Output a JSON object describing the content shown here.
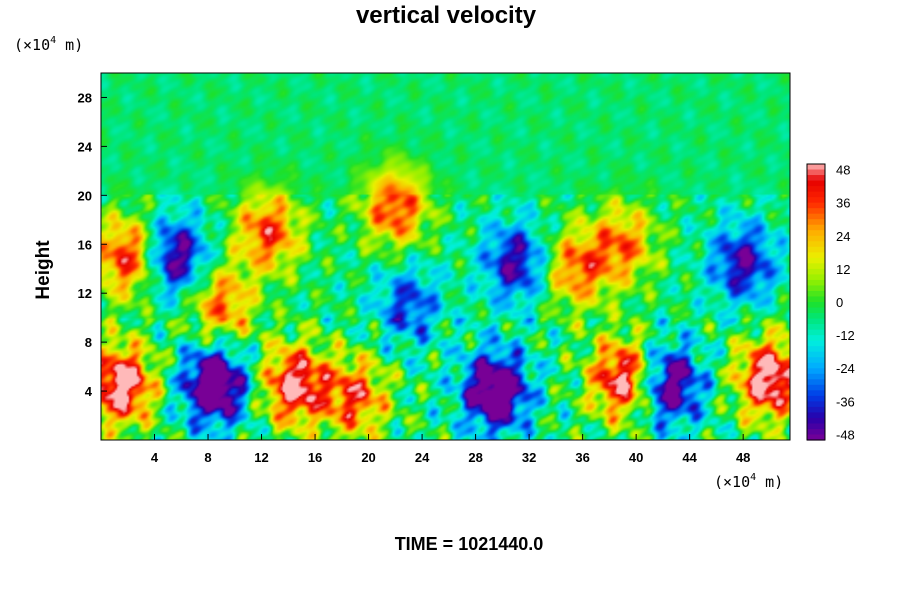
{
  "chart_data": {
    "type": "heatmap",
    "title": "vertical velocity",
    "ylabel": "Height",
    "x_unit": {
      "base": "(×10",
      "exp": "4",
      "rest": " m)"
    },
    "y_unit": {
      "base": "(×10",
      "exp": "4",
      "rest": " m)"
    },
    "xlim": [
      0,
      51.5
    ],
    "ylim": [
      0,
      30
    ],
    "x_ticks": [
      "4",
      "8",
      "12",
      "16",
      "20",
      "24",
      "28",
      "32",
      "36",
      "40",
      "44",
      "48"
    ],
    "y_ticks": [
      "4",
      "8",
      "12",
      "16",
      "20",
      "24",
      "28"
    ],
    "x_tick_values": [
      4,
      8,
      12,
      16,
      20,
      24,
      28,
      32,
      36,
      40,
      44,
      48
    ],
    "y_tick_values": [
      4,
      8,
      12,
      16,
      20,
      24,
      28
    ],
    "colorbar": {
      "min": -50,
      "max": 50,
      "tick_labels": [
        "48",
        "36",
        "24",
        "12",
        "0",
        "-12",
        "-24",
        "-36",
        "-48"
      ],
      "tick_values": [
        48,
        36,
        24,
        12,
        0,
        -12,
        -24,
        -36,
        -48
      ]
    },
    "features": [
      {
        "x": 1.5,
        "y": 4.5,
        "v": 50
      },
      {
        "x": 8.5,
        "y": 4.5,
        "v": -50
      },
      {
        "x": 14.5,
        "y": 4.5,
        "v": 46
      },
      {
        "x": 19,
        "y": 3.5,
        "v": 34
      },
      {
        "x": 29.5,
        "y": 4,
        "v": -50
      },
      {
        "x": 39,
        "y": 5,
        "v": 46
      },
      {
        "x": 42.5,
        "y": 4.5,
        "v": -42
      },
      {
        "x": 50,
        "y": 5,
        "v": 50
      },
      {
        "x": 2,
        "y": 15,
        "v": 38
      },
      {
        "x": 5.5,
        "y": 15,
        "v": -38
      },
      {
        "x": 12.5,
        "y": 17,
        "v": 34
      },
      {
        "x": 22,
        "y": 19,
        "v": 34
      },
      {
        "x": 31,
        "y": 14.5,
        "v": -32
      },
      {
        "x": 35.5,
        "y": 14,
        "v": 30
      },
      {
        "x": 39,
        "y": 16,
        "v": 28
      },
      {
        "x": 48,
        "y": 14.5,
        "v": -32
      },
      {
        "x": 9,
        "y": 11,
        "v": 30
      },
      {
        "x": 23,
        "y": 11,
        "v": -24
      }
    ]
  },
  "footer": {
    "time_label": "TIME = 1021440.0"
  },
  "colors": {
    "background": "#ffffff",
    "axis": "#000000"
  }
}
